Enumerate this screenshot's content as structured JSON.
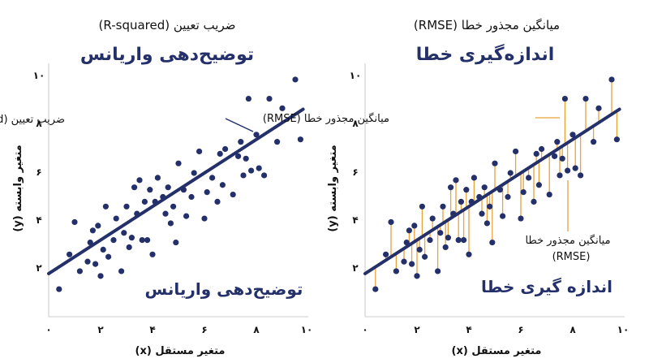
{
  "chart_data": [
    {
      "type": "scatter",
      "subtitle": "ضریب تعیین (R-squared)",
      "title": "توضیح‌دهی واریانس",
      "annotation": "ضریب تعیین (R-squared)",
      "overlay_label": "توضیح‌دهی واریانس",
      "xlabel": "متغیر مستقل (x)",
      "ylabel": "متغیر وابسته (y)",
      "xlim": [
        0,
        10
      ],
      "ylim": [
        0,
        10
      ],
      "xticks": [
        "۰",
        "۲",
        "۴",
        "۶",
        "۸",
        "۱۰"
      ],
      "yticks": [
        "۲",
        "۴",
        "۶",
        "۸",
        "۱۰"
      ],
      "grid": false,
      "colors": {
        "points": "#24306a",
        "fit_line": "#24306a"
      },
      "fit_line": {
        "x": [
          0,
          10
        ],
        "y": [
          1.8,
          8.8
        ]
      },
      "points": [
        {
          "x": 0.4,
          "y": 1.15
        },
        {
          "x": 0.8,
          "y": 2.6
        },
        {
          "x": 1.0,
          "y": 3.95
        },
        {
          "x": 1.2,
          "y": 1.9
        },
        {
          "x": 1.5,
          "y": 2.3
        },
        {
          "x": 1.6,
          "y": 3.1
        },
        {
          "x": 1.7,
          "y": 3.6
        },
        {
          "x": 1.8,
          "y": 2.2
        },
        {
          "x": 1.9,
          "y": 3.8
        },
        {
          "x": 2.0,
          "y": 1.7
        },
        {
          "x": 2.1,
          "y": 2.8
        },
        {
          "x": 2.2,
          "y": 4.6
        },
        {
          "x": 2.3,
          "y": 2.5
        },
        {
          "x": 2.5,
          "y": 3.2
        },
        {
          "x": 2.6,
          "y": 4.1
        },
        {
          "x": 2.8,
          "y": 1.9
        },
        {
          "x": 2.9,
          "y": 3.5
        },
        {
          "x": 3.0,
          "y": 4.6
        },
        {
          "x": 3.1,
          "y": 2.9
        },
        {
          "x": 3.2,
          "y": 3.3
        },
        {
          "x": 3.3,
          "y": 5.4
        },
        {
          "x": 3.4,
          "y": 4.3
        },
        {
          "x": 3.5,
          "y": 5.7
        },
        {
          "x": 3.6,
          "y": 3.2
        },
        {
          "x": 3.7,
          "y": 4.8
        },
        {
          "x": 3.8,
          "y": 3.2
        },
        {
          "x": 3.9,
          "y": 5.3
        },
        {
          "x": 4.0,
          "y": 2.6
        },
        {
          "x": 4.1,
          "y": 4.8
        },
        {
          "x": 4.2,
          "y": 5.8
        },
        {
          "x": 4.4,
          "y": 5.0
        },
        {
          "x": 4.5,
          "y": 4.3
        },
        {
          "x": 4.6,
          "y": 5.4
        },
        {
          "x": 4.7,
          "y": 3.9
        },
        {
          "x": 4.8,
          "y": 4.6
        },
        {
          "x": 4.9,
          "y": 3.1
        },
        {
          "x": 5.0,
          "y": 6.4
        },
        {
          "x": 5.2,
          "y": 5.3
        },
        {
          "x": 5.3,
          "y": 4.2
        },
        {
          "x": 5.5,
          "y": 5.0
        },
        {
          "x": 5.6,
          "y": 6.0
        },
        {
          "x": 5.8,
          "y": 6.9
        },
        {
          "x": 6.0,
          "y": 4.1
        },
        {
          "x": 6.1,
          "y": 5.2
        },
        {
          "x": 6.3,
          "y": 5.8
        },
        {
          "x": 6.5,
          "y": 4.8
        },
        {
          "x": 6.6,
          "y": 6.8
        },
        {
          "x": 6.7,
          "y": 5.5
        },
        {
          "x": 6.8,
          "y": 7.0
        },
        {
          "x": 7.1,
          "y": 5.1
        },
        {
          "x": 7.3,
          "y": 6.7
        },
        {
          "x": 7.4,
          "y": 7.3
        },
        {
          "x": 7.5,
          "y": 5.9
        },
        {
          "x": 7.6,
          "y": 6.6
        },
        {
          "x": 7.7,
          "y": 9.1
        },
        {
          "x": 7.8,
          "y": 6.1
        },
        {
          "x": 8.0,
          "y": 7.6
        },
        {
          "x": 8.1,
          "y": 6.2
        },
        {
          "x": 8.3,
          "y": 5.9
        },
        {
          "x": 8.5,
          "y": 9.1
        },
        {
          "x": 8.8,
          "y": 7.3
        },
        {
          "x": 9.0,
          "y": 8.7
        },
        {
          "x": 9.5,
          "y": 9.9
        },
        {
          "x": 9.7,
          "y": 7.4
        }
      ]
    },
    {
      "type": "scatter",
      "subtitle": "میانگین مجذور خطا (RMSE)",
      "title": "اندازه‌گیری خطا",
      "annotation": "میانگین مجذور خطا (RMSE)",
      "annotation_lower_1": "میانگین مجذور خطا",
      "annotation_lower_2": "(RMSE)",
      "overlay_label": "اندازه گیری خطا",
      "xlabel": "متغیر مستقل (x)",
      "ylabel": "متغیر وابسته (y)",
      "xlim": [
        0,
        10
      ],
      "ylim": [
        0,
        10
      ],
      "xticks": [
        "۰",
        "۲",
        "۴",
        "۶",
        "۸",
        "۱۰"
      ],
      "yticks": [
        "۲",
        "۴",
        "۶",
        "۸",
        "۱۰"
      ],
      "grid": false,
      "residuals_shown": true,
      "colors": {
        "points": "#24306a",
        "fit_line": "#24306a",
        "residuals": "#e8a23a"
      },
      "fit_line": {
        "x": [
          0,
          10
        ],
        "y": [
          1.8,
          8.8
        ]
      },
      "points": "same as left chart"
    }
  ]
}
